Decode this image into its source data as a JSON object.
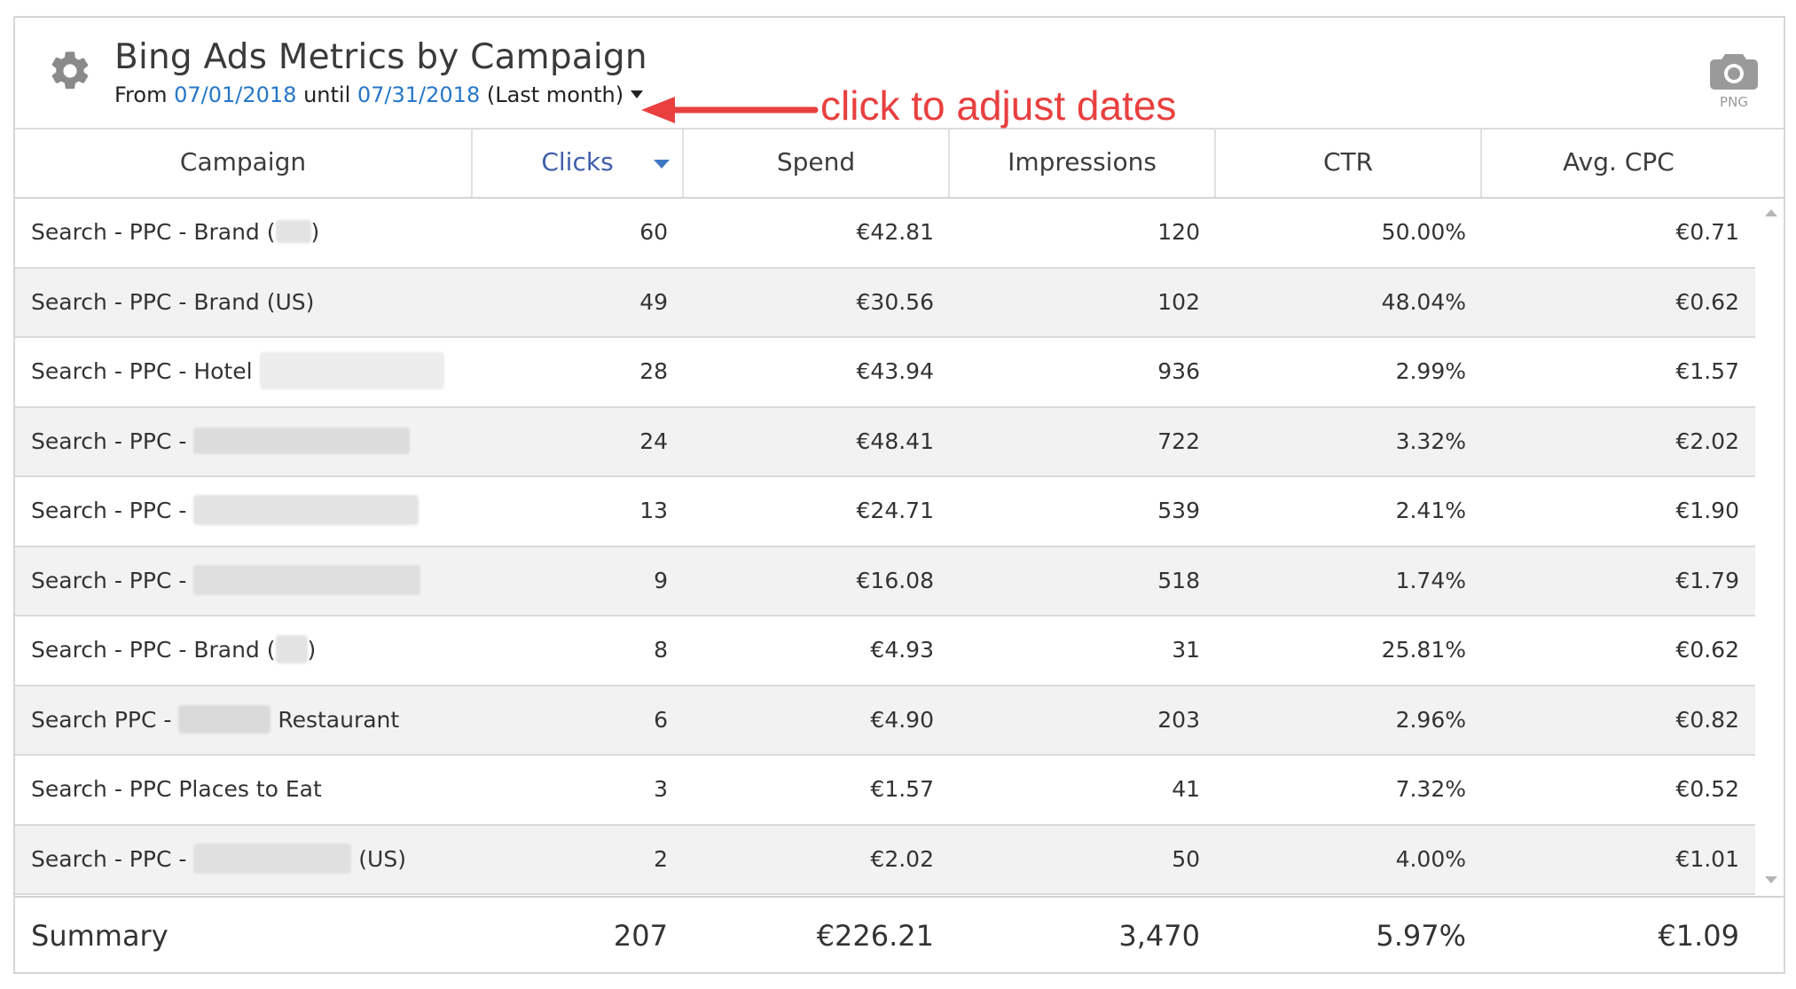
{
  "widget": {
    "title": "Bing Ads Metrics by Campaign",
    "date_range": {
      "from_label": "From",
      "start": "07/01/2018",
      "until_label": "until",
      "end": "07/31/2018",
      "preset": "(Last month)"
    },
    "annotation": "click to adjust dates",
    "export_label": "PNG",
    "icons": {
      "settings": "gear-icon",
      "export": "camera-icon",
      "dropdown": "caret-down-icon",
      "sort": "sort-desc-icon"
    },
    "colors": {
      "link": "#2577c8",
      "sorted_header": "#3e5eab",
      "annotation": "#e8403f",
      "alt_row": "#f2f2f2"
    }
  },
  "table": {
    "columns": [
      "Campaign",
      "Clicks",
      "Spend",
      "Impressions",
      "CTR",
      "Avg. CPC"
    ],
    "sorted_column": "Clicks",
    "sort_direction": "desc",
    "rows": [
      {
        "campaign": "Search - PPC - Brand (",
        "suffix": ")",
        "clicks": "60",
        "spend": "€42.81",
        "impressions": "120",
        "ctr": "50.00%",
        "cpc": "€0.71"
      },
      {
        "campaign": "Search - PPC - Brand (US)",
        "suffix": "",
        "clicks": "49",
        "spend": "€30.56",
        "impressions": "102",
        "ctr": "48.04%",
        "cpc": "€0.62"
      },
      {
        "campaign": "Search - PPC - Hotel",
        "suffix": "",
        "clicks": "28",
        "spend": "€43.94",
        "impressions": "936",
        "ctr": "2.99%",
        "cpc": "€1.57"
      },
      {
        "campaign": "Search - PPC -",
        "suffix": "",
        "clicks": "24",
        "spend": "€48.41",
        "impressions": "722",
        "ctr": "3.32%",
        "cpc": "€2.02"
      },
      {
        "campaign": "Search - PPC -",
        "suffix": "",
        "clicks": "13",
        "spend": "€24.71",
        "impressions": "539",
        "ctr": "2.41%",
        "cpc": "€1.90"
      },
      {
        "campaign": "Search - PPC -",
        "suffix": "",
        "clicks": "9",
        "spend": "€16.08",
        "impressions": "518",
        "ctr": "1.74%",
        "cpc": "€1.79"
      },
      {
        "campaign": "Search - PPC - Brand (",
        "suffix": ")",
        "clicks": "8",
        "spend": "€4.93",
        "impressions": "31",
        "ctr": "25.81%",
        "cpc": "€0.62"
      },
      {
        "campaign": "Search PPC -",
        "suffix": "Restaurant",
        "clicks": "6",
        "spend": "€4.90",
        "impressions": "203",
        "ctr": "2.96%",
        "cpc": "€0.82"
      },
      {
        "campaign": "Search - PPC Places to Eat",
        "suffix": "",
        "clicks": "3",
        "spend": "€1.57",
        "impressions": "41",
        "ctr": "7.32%",
        "cpc": "€0.52"
      },
      {
        "campaign": "Search - PPC -",
        "suffix": "(US)",
        "clicks": "2",
        "spend": "€2.02",
        "impressions": "50",
        "ctr": "4.00%",
        "cpc": "€1.01"
      }
    ],
    "summary": {
      "label": "Summary",
      "clicks": "207",
      "spend": "€226.21",
      "impressions": "3,470",
      "ctr": "5.97%",
      "cpc": "€1.09"
    }
  }
}
